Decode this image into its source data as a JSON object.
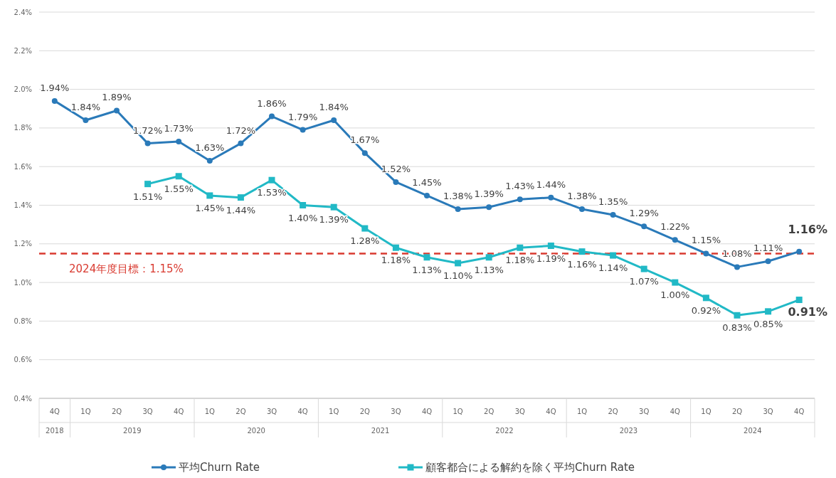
{
  "chart_data": {
    "type": "line",
    "categories": [
      "4Q",
      "1Q",
      "2Q",
      "3Q",
      "4Q",
      "1Q",
      "2Q",
      "3Q",
      "4Q",
      "1Q",
      "2Q",
      "3Q",
      "4Q",
      "1Q",
      "2Q",
      "3Q",
      "4Q",
      "1Q",
      "2Q",
      "3Q",
      "4Q",
      "1Q",
      "2Q",
      "3Q",
      "4Q"
    ],
    "series": [
      {
        "name": "平均Churn Rate",
        "color": "#2a7ab9",
        "marker": "circle",
        "values": [
          1.94,
          1.84,
          1.89,
          1.72,
          1.73,
          1.63,
          1.72,
          1.86,
          1.79,
          1.84,
          1.67,
          1.52,
          1.45,
          1.38,
          1.39,
          1.43,
          1.44,
          1.38,
          1.35,
          1.29,
          1.22,
          1.15,
          1.08,
          1.11,
          1.16
        ],
        "value_labels": [
          "1.94%",
          "1.84%",
          "1.89%",
          "1.72%",
          "1.73%",
          "1.63%",
          "1.72%",
          "1.86%",
          "1.79%",
          "1.84%",
          "1.67%",
          "1.52%",
          "1.45%",
          "1.38%",
          "1.39%",
          "1.43%",
          "1.44%",
          "1.38%",
          "1.35%",
          "1.29%",
          "1.22%",
          "1.15%",
          "1.08%",
          "1.11%",
          "1.16%"
        ]
      },
      {
        "name": "顧客都合による解約を除く平均Churn Rate",
        "color": "#21b9c6",
        "marker": "square",
        "values": [
          null,
          null,
          null,
          1.51,
          1.55,
          1.45,
          1.44,
          1.53,
          1.4,
          1.39,
          1.28,
          1.18,
          1.13,
          1.1,
          1.13,
          1.18,
          1.19,
          1.16,
          1.14,
          1.07,
          1.0,
          0.92,
          0.83,
          0.85,
          0.91
        ],
        "value_labels": [
          null,
          null,
          null,
          "1.51%",
          "1.55%",
          "1.45%",
          "1.44%",
          "1.53%",
          "1.40%",
          "1.39%",
          "1.28%",
          "1.18%",
          "1.13%",
          "1.10%",
          "1.13%",
          "1.18%",
          "1.19%",
          "1.16%",
          "1.14%",
          "1.07%",
          "1.00%",
          "0.92%",
          "0.83%",
          "0.85%",
          "0.91%"
        ]
      }
    ],
    "ylim": [
      0.4,
      2.4
    ],
    "yticks": [
      {
        "value": 0.4,
        "label": "0.4%"
      },
      {
        "value": 0.6,
        "label": "0.6%"
      },
      {
        "value": 0.8,
        "label": "0.8%"
      },
      {
        "value": 1.0,
        "label": "1.0%"
      },
      {
        "value": 1.2,
        "label": "1.2%"
      },
      {
        "value": 1.4,
        "label": "1.4%"
      },
      {
        "value": 1.6,
        "label": "1.6%"
      },
      {
        "value": 1.8,
        "label": "1.8%"
      },
      {
        "value": 2.0,
        "label": "2.0%"
      },
      {
        "value": 2.2,
        "label": "2.2%"
      },
      {
        "value": 2.4,
        "label": "2.4%"
      }
    ],
    "grid": "y",
    "legend": "bottom",
    "ref_lines": [
      {
        "axis": "y",
        "value": 1.15,
        "label": "2024年度目標：1.15%",
        "color": "#d93a30",
        "line_style": "dashed"
      }
    ],
    "annotations": [
      "2018",
      "2019",
      "2020",
      "2021",
      "2022",
      "2023",
      "2024"
    ]
  }
}
